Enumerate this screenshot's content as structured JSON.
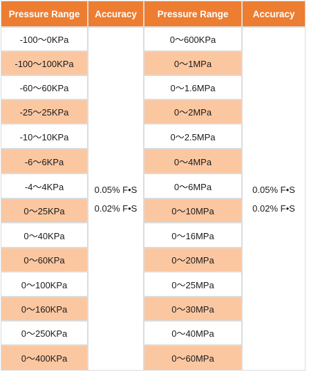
{
  "headers": {
    "col1": "Pressure Range",
    "col2": "Accuracy",
    "col3": "Pressure Range",
    "col4": "Accuracy"
  },
  "left_ranges": [
    "-100～0KPa",
    "-100～100KPa",
    "-60～60KPa",
    "-25～25KPa",
    "-10～10KPa",
    "-6～6KPa",
    "-4～4KPa",
    "0～25KPa",
    "0～40KPa",
    "0～60KPa",
    "0～100KPa",
    "0～160KPa",
    "0～250KPa",
    "0～400KPa"
  ],
  "right_ranges": [
    "0～600KPa",
    "0～1MPa",
    "0～1.6MPa",
    "0～2MPa",
    "0～2.5MPa",
    "0～4MPa",
    "0～6MPa",
    "0～10MPa",
    "0～16MPa",
    "0～20MPa",
    "0～25MPa",
    "0～30MPa",
    "0～40MPa",
    "0～60MPa"
  ],
  "left_accuracy": [
    "0.05% F•S",
    "0.02% F•S"
  ],
  "right_accuracy": [
    "0.05% F•S",
    "0.02% F•S"
  ],
  "colors": {
    "header_bg": "#ed7d31",
    "header_text": "#ffffff",
    "alt_row_bg": "#fbc7a1",
    "row_bg": "#ffffff",
    "grid": "#dcdcdc"
  }
}
